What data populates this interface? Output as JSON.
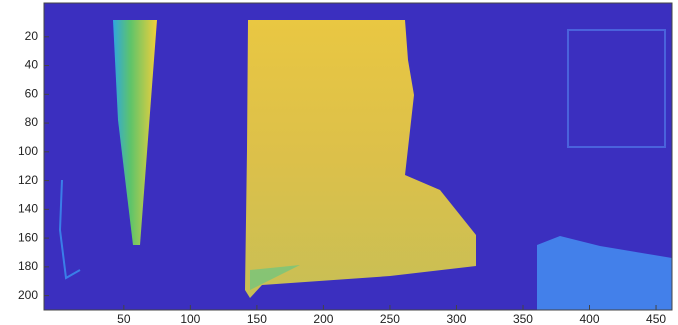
{
  "chart_data": {
    "type": "image",
    "xlim": [
      -10,
      462
    ],
    "ylim": [
      -3.5,
      210
    ],
    "y_reversed": true,
    "xticks": [
      50,
      100,
      150,
      200,
      250,
      300,
      350,
      400,
      450
    ],
    "yticks": [
      20,
      40,
      60,
      80,
      100,
      120,
      140,
      160,
      180,
      200
    ],
    "background": "#3b2fbf"
  }
}
